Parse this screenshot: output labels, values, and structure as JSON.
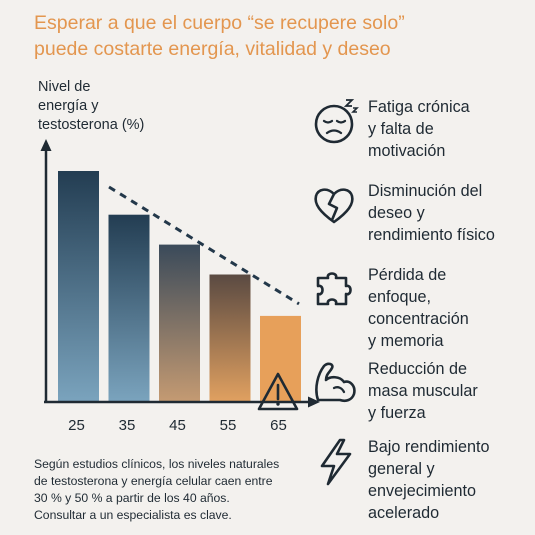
{
  "title_lines": [
    "Esperar a que el cuerpo “se recupere solo”",
    "puede costarte energía, vitalidad y deseo"
  ],
  "colors": {
    "title": "#e3964f",
    "bar_dark": "#233d52",
    "bar_light": "#7aa3bd",
    "bar_highlight": "#e7a05a",
    "text": "#1f2a33"
  },
  "chart_data": {
    "type": "bar",
    "ylabel_lines": [
      "Nivel de",
      "energía y",
      "testosterona (%)"
    ],
    "categories": [
      "25",
      "35",
      "45",
      "55",
      "65"
    ],
    "values": [
      100,
      81,
      68,
      55,
      37
    ],
    "ylim": [
      0,
      110
    ],
    "trend": "dashed-decreasing",
    "grid": false,
    "highlight_category": "65",
    "highlight_icon": "warning-icon"
  },
  "items": [
    {
      "icon": "tired-face-icon",
      "lines": [
        "Fatiga crónica",
        "y falta de",
        "motivación"
      ]
    },
    {
      "icon": "broken-heart-icon",
      "lines": [
        "Disminución del",
        "deseo y",
        "rendimiento físico"
      ]
    },
    {
      "icon": "puzzle-piece-icon",
      "lines": [
        "Pérdida de",
        "enfoque,",
        "concentración",
        "y memoria"
      ]
    },
    {
      "icon": "flexed-arm-icon",
      "lines": [
        "Reducción de",
        "masa muscular",
        "y fuerza"
      ]
    },
    {
      "icon": "lightning-bolt-icon",
      "lines": [
        "Bajo rendimiento",
        "general y",
        "envejecimiento",
        "acelerado"
      ]
    }
  ],
  "note_lines": [
    "Según estudios clínicos, los niveles naturales",
    "de testosterona y energía celular caen entre",
    "30 % y 50 % a partir de los 40 años.",
    "Consultar a un especialista es clave."
  ]
}
